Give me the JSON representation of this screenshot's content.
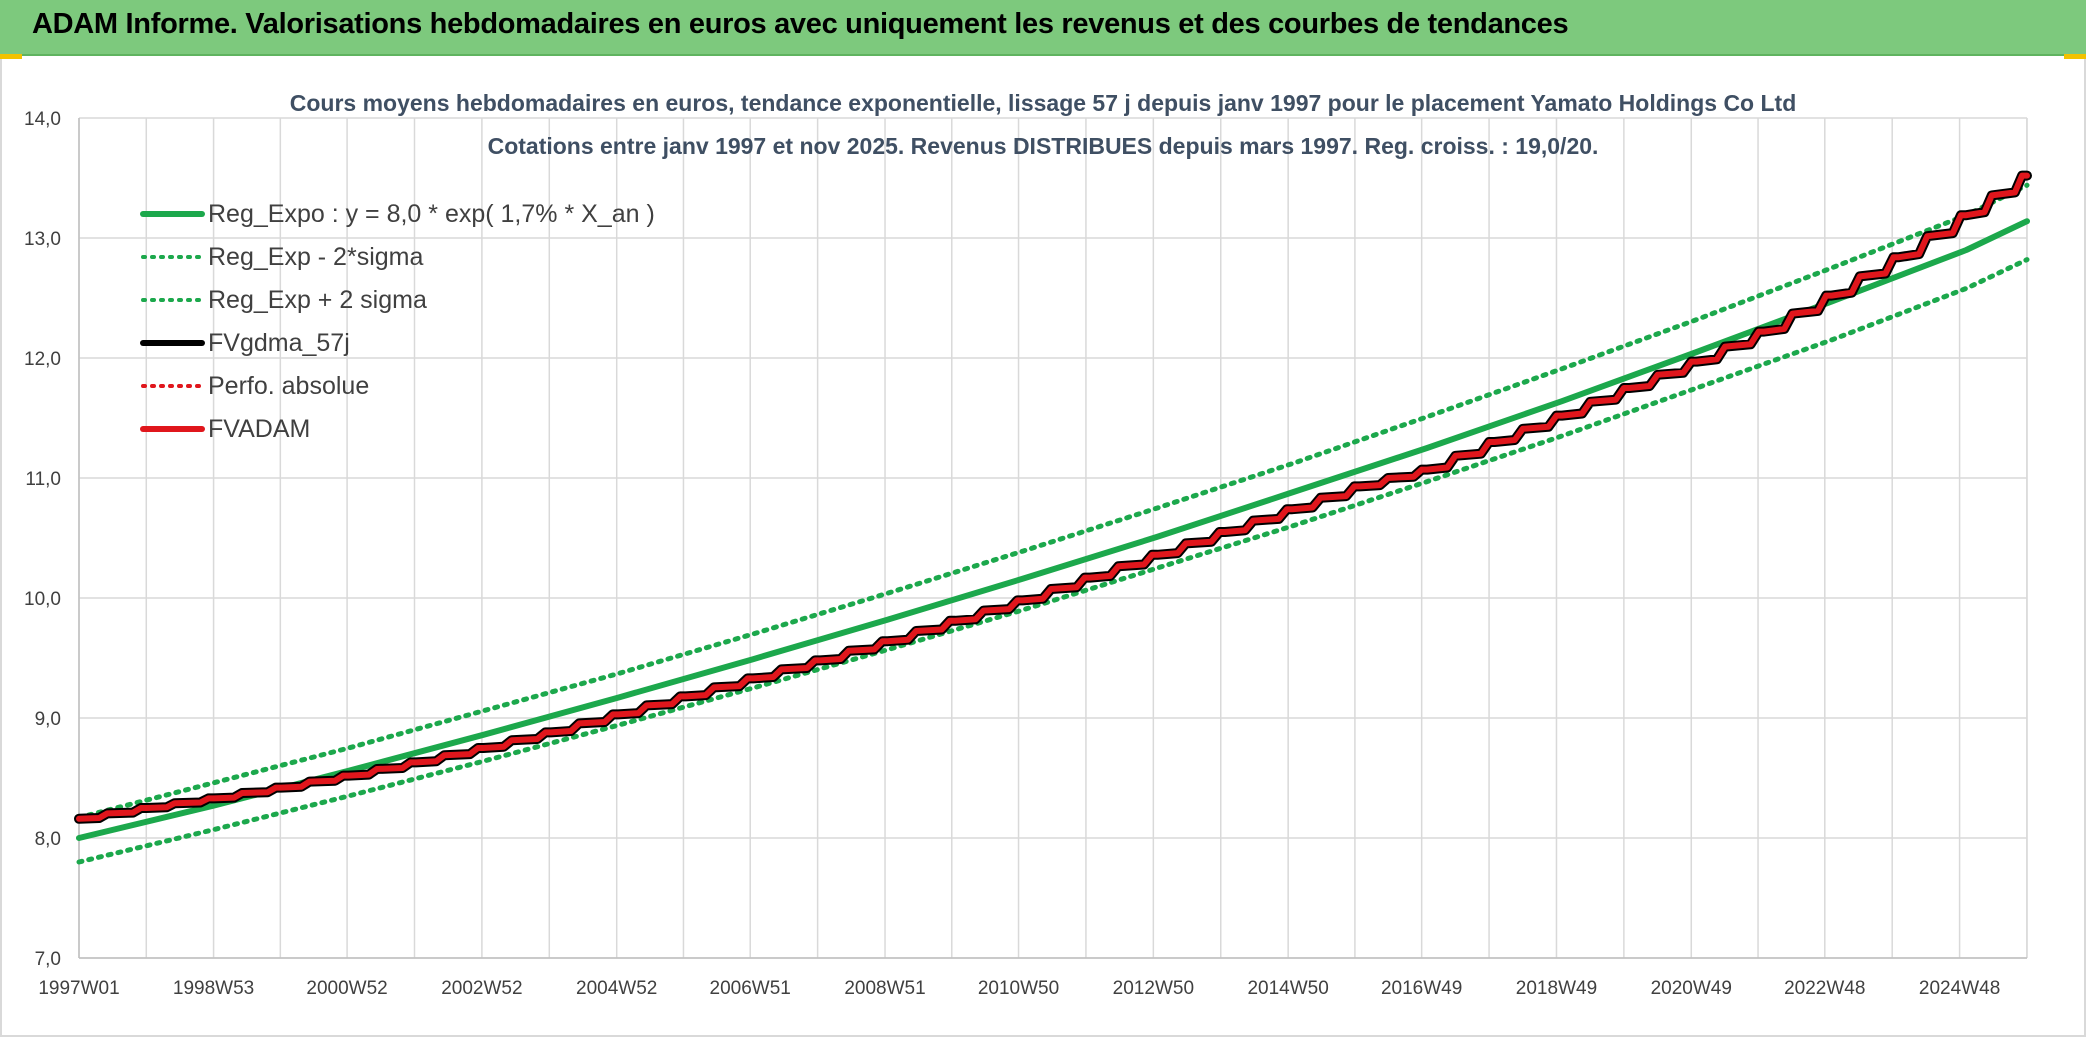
{
  "banner": {
    "title": "ADAM Informe. Valorisations hebdomadaires en euros avec uniquement les revenus et des courbes de tendances"
  },
  "colors": {
    "banner_bg": "#7dc97d",
    "reg_expo": "#1ca84c",
    "sigma_bands": "#1ca84c",
    "fvgdma": "#000000",
    "perfo_absolue": "#e0161c",
    "fvadam": "#e0161c",
    "grid": "#d9d9d9"
  },
  "chart_data": {
    "type": "line",
    "title": "Cours moyens hebdomadaires en euros, tendance exponentielle, lissage 57 j depuis janv 1997 pour le placement Yamato Holdings Co Ltd",
    "subtitle": "Cotations entre janv 1997 et nov 2025. Revenus DISTRIBUES depuis mars 1997. Reg. croiss. : 19,0/20.",
    "xlabel": "",
    "ylabel": "",
    "x_range": [
      "1997W01",
      "2025W48"
    ],
    "x_ticks": [
      "1997W01",
      "1998W53",
      "2000W52",
      "2002W52",
      "2004W52",
      "2006W51",
      "2008W51",
      "2010W50",
      "2012W50",
      "2014W50",
      "2016W49",
      "2018W49",
      "2020W49",
      "2022W48",
      "2024W48"
    ],
    "y_ticks": [
      "7,0",
      "8,0",
      "9,0",
      "10,0",
      "11,0",
      "12,0",
      "13,0",
      "14,0"
    ],
    "ylim": [
      7.0,
      14.0
    ],
    "grid": true,
    "legend_position": "top-left",
    "series": [
      {
        "name": "Reg_Expo : y = 8,0 * exp( 1,7% *  X_an )",
        "style": "solid-thick",
        "color": "#1ca84c",
        "x": [
          "1997W01",
          "1999W01",
          "2001W01",
          "2003W01",
          "2005W01",
          "2007W01",
          "2009W01",
          "2011W01",
          "2013W01",
          "2015W01",
          "2017W01",
          "2019W01",
          "2021W01",
          "2023W01",
          "2025W01",
          "2025W48"
        ],
        "values": [
          8.0,
          8.27,
          8.56,
          8.86,
          9.17,
          9.49,
          9.82,
          10.16,
          10.51,
          10.88,
          11.25,
          11.64,
          12.05,
          12.47,
          12.9,
          13.14
        ]
      },
      {
        "name": "Reg_Exp - 2*sigma",
        "style": "dotted",
        "color": "#1ca84c",
        "x": [
          "1997W01",
          "1999W01",
          "2001W01",
          "2003W01",
          "2005W01",
          "2007W01",
          "2009W01",
          "2011W01",
          "2013W01",
          "2015W01",
          "2017W01",
          "2019W01",
          "2021W01",
          "2023W01",
          "2025W01",
          "2025W48"
        ],
        "values": [
          7.8,
          8.07,
          8.35,
          8.64,
          8.94,
          9.25,
          9.57,
          9.9,
          10.25,
          10.6,
          10.97,
          11.35,
          11.75,
          12.15,
          12.58,
          12.82
        ]
      },
      {
        "name": "Reg_Exp + 2 sigma",
        "style": "dotted",
        "color": "#1ca84c",
        "x": [
          "1997W01",
          "1999W01",
          "2001W01",
          "2003W01",
          "2005W01",
          "2007W01",
          "2009W01",
          "2011W01",
          "2013W01",
          "2015W01",
          "2017W01",
          "2019W01",
          "2021W01",
          "2023W01",
          "2025W01",
          "2025W48"
        ],
        "values": [
          8.17,
          8.46,
          8.75,
          9.06,
          9.37,
          9.7,
          10.04,
          10.39,
          10.75,
          11.12,
          11.51,
          11.91,
          12.32,
          12.75,
          13.19,
          13.44
        ]
      },
      {
        "name": "FVgdma_57j",
        "style": "solid-thick",
        "color": "#000000",
        "x": [
          "1997W01",
          "1998W01",
          "1999W01",
          "2000W01",
          "2001W01",
          "2002W01",
          "2003W01",
          "2004W01",
          "2005W01",
          "2006W01",
          "2007W01",
          "2008W01",
          "2009W01",
          "2010W01",
          "2011W01",
          "2012W01",
          "2013W01",
          "2014W01",
          "2015W01",
          "2016W01",
          "2017W01",
          "2018W01",
          "2019W01",
          "2020W01",
          "2021W01",
          "2022W01",
          "2023W01",
          "2024W01",
          "2025W01",
          "2025W48"
        ],
        "values": [
          8.16,
          8.25,
          8.33,
          8.42,
          8.52,
          8.63,
          8.75,
          8.88,
          9.03,
          9.18,
          9.33,
          9.48,
          9.64,
          9.81,
          9.98,
          10.17,
          10.36,
          10.55,
          10.74,
          10.93,
          11.07,
          11.3,
          11.52,
          11.75,
          11.97,
          12.22,
          12.52,
          12.84,
          13.19,
          13.52
        ]
      },
      {
        "name": "Perfo. absolue",
        "style": "dotted",
        "color": "#e0161c",
        "x": [
          "1997W01",
          "1998W01",
          "1999W01",
          "2000W01",
          "2001W01",
          "2002W01",
          "2003W01",
          "2004W01",
          "2005W01",
          "2006W01",
          "2007W01",
          "2008W01",
          "2009W01",
          "2010W01",
          "2011W01",
          "2012W01",
          "2013W01",
          "2014W01",
          "2015W01",
          "2016W01",
          "2017W01",
          "2018W01",
          "2019W01",
          "2020W01",
          "2021W01",
          "2022W01",
          "2023W01",
          "2024W01",
          "2025W01",
          "2025W48"
        ],
        "values": [
          8.16,
          8.25,
          8.33,
          8.42,
          8.52,
          8.63,
          8.75,
          8.88,
          9.03,
          9.18,
          9.33,
          9.48,
          9.64,
          9.81,
          9.98,
          10.17,
          10.36,
          10.55,
          10.74,
          10.93,
          11.07,
          11.3,
          11.52,
          11.75,
          11.97,
          12.22,
          12.52,
          12.84,
          13.19,
          13.52
        ]
      },
      {
        "name": "FVADAM",
        "style": "solid-thick",
        "color": "#e0161c",
        "x": [
          "1997W01",
          "1998W01",
          "1999W01",
          "2000W01",
          "2001W01",
          "2002W01",
          "2003W01",
          "2004W01",
          "2005W01",
          "2006W01",
          "2007W01",
          "2008W01",
          "2009W01",
          "2010W01",
          "2011W01",
          "2012W01",
          "2013W01",
          "2014W01",
          "2015W01",
          "2016W01",
          "2017W01",
          "2018W01",
          "2019W01",
          "2020W01",
          "2021W01",
          "2022W01",
          "2023W01",
          "2024W01",
          "2025W01",
          "2025W48"
        ],
        "values": [
          8.16,
          8.25,
          8.33,
          8.42,
          8.52,
          8.63,
          8.75,
          8.88,
          9.03,
          9.18,
          9.33,
          9.48,
          9.64,
          9.81,
          9.98,
          10.17,
          10.36,
          10.55,
          10.74,
          10.93,
          11.07,
          11.3,
          11.52,
          11.75,
          11.97,
          12.22,
          12.52,
          12.84,
          13.19,
          13.52
        ]
      }
    ]
  }
}
